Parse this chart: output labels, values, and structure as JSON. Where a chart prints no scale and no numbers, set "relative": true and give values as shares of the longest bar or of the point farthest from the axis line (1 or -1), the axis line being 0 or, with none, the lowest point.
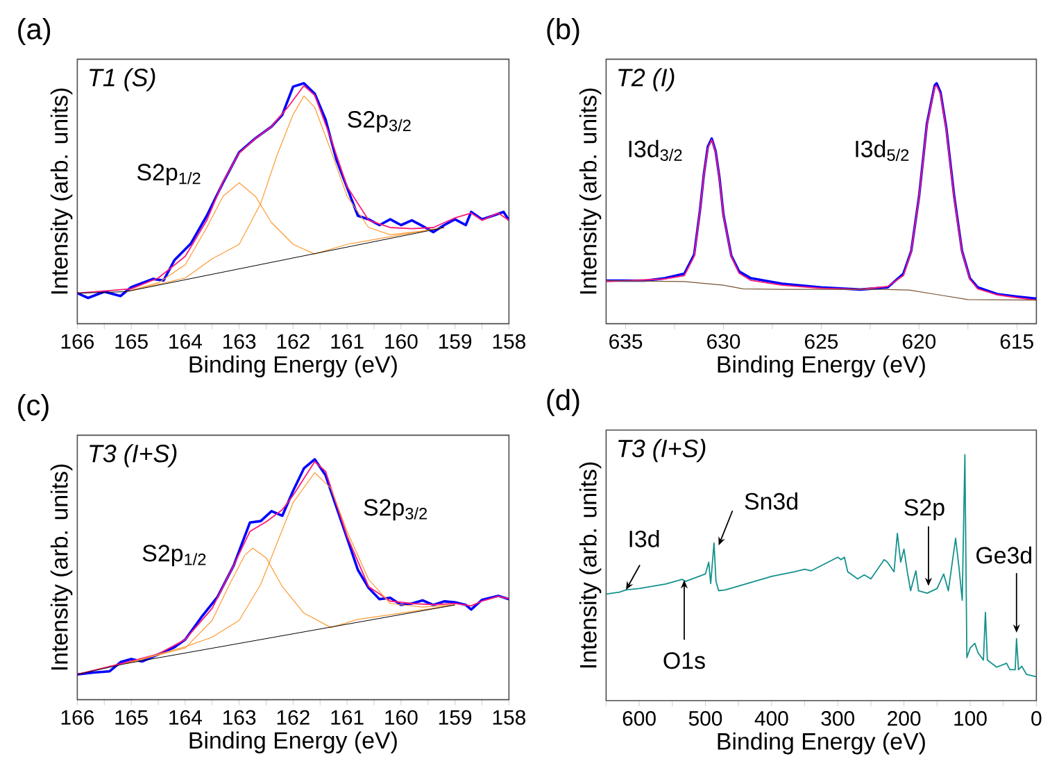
{
  "chart_data": [
    {
      "type": "line",
      "title": "(a)",
      "subtitle": "T1 (S)",
      "xlabel": "Binding Energy (eV)",
      "ylabel": "Intensity (arb. units)",
      "relative": true,
      "xlim": [
        166,
        158
      ],
      "xticks": [
        166,
        {
          "value": 165.5,
          "label": null
        },
        165,
        {
          "value": 164.5,
          "label": null
        },
        164,
        {
          "value": 163.5,
          "label": null
        },
        163,
        {
          "value": 162.5,
          "label": null
        },
        162,
        {
          "value": 161.5,
          "label": null
        },
        161,
        {
          "value": 160.5,
          "label": null
        },
        160,
        {
          "value": 159.5,
          "label": null
        },
        159,
        {
          "value": 158.5,
          "label": null
        },
        158
      ],
      "annotations": [
        "S2p$_{1/2}$",
        "S2p$_{3/2}$"
      ],
      "series": [
        {
          "color": "#0000ff",
          "x": [
            166,
            165.8,
            165.5,
            165.2,
            165.0,
            164.6,
            164.4,
            164.2,
            163.9,
            163.6,
            163.3,
            163.0,
            162.7,
            162.4,
            162.2,
            162.0,
            161.8,
            161.6,
            161.4,
            161.2,
            161.0,
            160.8,
            160.6,
            160.4,
            160.2,
            160.0,
            159.8,
            159.6,
            159.4,
            159.2,
            159.0,
            158.8,
            158.7,
            158.5,
            158.3,
            158.1,
            158.0
          ],
          "values": [
            0.127,
            0.107,
            0.133,
            0.115,
            0.152,
            0.186,
            0.18,
            0.264,
            0.332,
            0.449,
            0.586,
            0.713,
            0.771,
            0.82,
            0.869,
            0.986,
            1.0,
            0.957,
            0.85,
            0.684,
            0.566,
            0.449,
            0.434,
            0.41,
            0.434,
            0.41,
            0.43,
            0.406,
            0.381,
            0.41,
            0.434,
            0.41,
            0.465,
            0.434,
            0.449,
            0.465,
            0.43
          ]
        },
        {
          "color": "#ff1a75",
          "x": [
            166,
            165,
            164.5,
            164,
            163.6,
            163.3,
            163,
            162.7,
            162.4,
            162.1,
            161.8,
            161.6,
            161.3,
            161,
            160.6,
            160.2,
            159.8,
            159.4,
            159.2,
            159,
            158.7,
            158.5,
            158.2,
            158
          ],
          "values": [
            0.127,
            0.145,
            0.19,
            0.28,
            0.43,
            0.59,
            0.71,
            0.77,
            0.82,
            0.9,
            0.99,
            0.95,
            0.77,
            0.57,
            0.43,
            0.4,
            0.395,
            0.4,
            0.42,
            0.44,
            0.46,
            0.43,
            0.46,
            0.43
          ]
        },
        {
          "color": "#ff9933",
          "x": [
            165.1,
            164.5,
            164,
            163.6,
            163.3,
            163,
            162.7,
            162.4,
            162,
            161.6,
            161,
            160,
            159.2
          ],
          "values": [
            0.133,
            0.17,
            0.245,
            0.4,
            0.53,
            0.586,
            0.53,
            0.42,
            0.33,
            0.29,
            0.33,
            0.37,
            0.4
          ]
        },
        {
          "color": "#ff9933",
          "x": [
            165.1,
            164,
            163.5,
            163,
            162.6,
            162.3,
            162,
            161.8,
            161.6,
            161.3,
            161,
            160.6,
            160.2,
            159.6,
            159.2
          ],
          "values": [
            0.133,
            0.19,
            0.27,
            0.33,
            0.5,
            0.7,
            0.87,
            0.947,
            0.9,
            0.72,
            0.53,
            0.4,
            0.37,
            0.385,
            0.4
          ]
        },
        {
          "color": "#000000",
          "x": [
            166,
            165.1,
            159.2
          ],
          "values": [
            0.127,
            0.133,
            0.4
          ]
        }
      ]
    },
    {
      "type": "line",
      "title": "(b)",
      "subtitle": "T2 (I)",
      "xlabel": "Binding Energy (eV)",
      "ylabel": "Intensity (arb. units)",
      "relative": true,
      "xlim": [
        636,
        614
      ],
      "xticks": [
        635,
        {
          "value": 632.5,
          "label": null
        },
        630,
        {
          "value": 627.5,
          "label": null
        },
        625,
        {
          "value": 622.5,
          "label": null
        },
        620,
        {
          "value": 617.5,
          "label": null
        },
        615
      ],
      "annotations": [
        "I3d$_{3/2}$",
        "I3d$_{5/2}$"
      ],
      "series": [
        {
          "color": "#0000ff",
          "x": [
            636,
            634,
            633,
            632,
            631.5,
            631.2,
            631.0,
            630.8,
            630.6,
            630.4,
            630.2,
            630.0,
            629.6,
            629.2,
            628.6,
            627,
            625,
            623,
            621.6,
            620.8,
            620.4,
            620.0,
            619.6,
            619.2,
            619.1,
            618.9,
            618.6,
            618.2,
            617.8,
            617.4,
            617,
            616,
            615,
            614
          ],
          "values": [
            0.179,
            0.179,
            0.189,
            0.208,
            0.287,
            0.472,
            0.623,
            0.736,
            0.77,
            0.717,
            0.604,
            0.453,
            0.283,
            0.217,
            0.189,
            0.166,
            0.151,
            0.142,
            0.151,
            0.208,
            0.302,
            0.528,
            0.83,
            0.991,
            1.0,
            0.962,
            0.811,
            0.528,
            0.302,
            0.189,
            0.151,
            0.123,
            0.113,
            0.104
          ]
        },
        {
          "color": "#ff1a75",
          "x": [
            636,
            633,
            632,
            631.5,
            631.2,
            631,
            630.8,
            630.6,
            630.4,
            630.2,
            630,
            629.6,
            629.2,
            628.6,
            627,
            625,
            623,
            621.6,
            620.8,
            620.4,
            620,
            619.6,
            619.2,
            619.1,
            618.9,
            618.6,
            618.2,
            617.8,
            617.4,
            617,
            616,
            615,
            614
          ],
          "values": [
            0.175,
            0.186,
            0.2,
            0.28,
            0.47,
            0.62,
            0.73,
            0.765,
            0.715,
            0.6,
            0.45,
            0.28,
            0.21,
            0.18,
            0.16,
            0.147,
            0.143,
            0.155,
            0.2,
            0.3,
            0.525,
            0.825,
            0.985,
            0.99,
            0.955,
            0.805,
            0.52,
            0.3,
            0.185,
            0.145,
            0.12,
            0.108,
            0.098
          ]
        },
        {
          "color": "#7a5230",
          "x": [
            636,
            632,
            630,
            629,
            627,
            622,
            620.5,
            619,
            617.5,
            614
          ],
          "values": [
            0.179,
            0.175,
            0.16,
            0.145,
            0.143,
            0.143,
            0.14,
            0.12,
            0.1,
            0.098
          ]
        }
      ]
    },
    {
      "type": "line",
      "title": "(c)",
      "subtitle": "T3 (I+S)",
      "xlabel": "Binding Energy (eV)",
      "ylabel": "Intensity (arb. units)",
      "relative": true,
      "xlim": [
        166,
        158
      ],
      "xticks": [
        166,
        {
          "value": 165.5,
          "label": null
        },
        165,
        {
          "value": 164.5,
          "label": null
        },
        164,
        {
          "value": 163.5,
          "label": null
        },
        163,
        {
          "value": 162.5,
          "label": null
        },
        162,
        {
          "value": 161.5,
          "label": null
        },
        161,
        {
          "value": 160.5,
          "label": null
        },
        160,
        {
          "value": 159.5,
          "label": null
        },
        159,
        {
          "value": 158.5,
          "label": null
        },
        158
      ],
      "annotations": [
        "S2p$_{1/2}$",
        "S2p$_{3/2}$"
      ],
      "series": [
        {
          "color": "#0000ff",
          "x": [
            166,
            165.7,
            165.4,
            165.2,
            165.0,
            164.8,
            164.5,
            164.2,
            164.0,
            163.7,
            163.4,
            163.1,
            162.8,
            162.6,
            162.4,
            162.2,
            162.0,
            161.8,
            161.6,
            161.4,
            161.2,
            161.0,
            160.8,
            160.6,
            160.4,
            160.2,
            160.0,
            159.8,
            159.6,
            159.4,
            159.2,
            159.0,
            158.8,
            158.7,
            158.5,
            158.2,
            158.0
          ],
          "values": [
            0.105,
            0.113,
            0.118,
            0.156,
            0.169,
            0.159,
            0.188,
            0.218,
            0.25,
            0.343,
            0.428,
            0.559,
            0.737,
            0.743,
            0.784,
            0.765,
            0.869,
            0.962,
            1.0,
            0.934,
            0.803,
            0.672,
            0.54,
            0.465,
            0.418,
            0.424,
            0.394,
            0.4,
            0.413,
            0.394,
            0.409,
            0.405,
            0.394,
            0.375,
            0.415,
            0.432,
            0.418
          ]
        },
        {
          "color": "#ff1a75",
          "x": [
            166,
            165,
            164.5,
            164,
            163.5,
            163.1,
            162.8,
            162.5,
            162.2,
            162,
            161.6,
            161.4,
            161,
            160.6,
            160.2,
            159.8,
            159.4,
            159,
            158.7,
            158.5,
            158.2,
            158
          ],
          "values": [
            0.105,
            0.16,
            0.19,
            0.25,
            0.38,
            0.56,
            0.7,
            0.74,
            0.79,
            0.85,
            0.99,
            0.95,
            0.68,
            0.47,
            0.41,
            0.4,
            0.395,
            0.4,
            0.39,
            0.41,
            0.43,
            0.42
          ]
        },
        {
          "color": "#ff9933",
          "x": [
            165.1,
            164,
            163.5,
            163.2,
            162.9,
            162.75,
            162.5,
            162.2,
            161.8,
            161.3,
            160.8,
            160,
            159
          ],
          "values": [
            0.15,
            0.215,
            0.33,
            0.47,
            0.6,
            0.63,
            0.59,
            0.47,
            0.36,
            0.3,
            0.334,
            0.36,
            0.394
          ]
        },
        {
          "color": "#ff9933",
          "x": [
            165.1,
            164,
            163.5,
            163,
            162.6,
            162.3,
            162,
            161.6,
            161.3,
            161,
            160.6,
            160.2,
            159.6,
            159
          ],
          "values": [
            0.15,
            0.22,
            0.26,
            0.33,
            0.48,
            0.65,
            0.82,
            0.944,
            0.88,
            0.7,
            0.5,
            0.4,
            0.385,
            0.394
          ]
        },
        {
          "color": "#000000",
          "x": [
            166,
            165.1,
            159
          ],
          "values": [
            0.105,
            0.15,
            0.394
          ]
        }
      ]
    },
    {
      "type": "line",
      "title": "(d)",
      "subtitle": "T3 (I+S)",
      "xlabel": "Binding Energy (eV)",
      "ylabel": "Intensity (arb. units)",
      "relative": true,
      "xlim": [
        650,
        0
      ],
      "xticks": [
        {
          "value": 650,
          "label": null
        },
        600,
        {
          "value": 550,
          "label": null
        },
        500,
        {
          "value": 450,
          "label": null
        },
        400,
        {
          "value": 350,
          "label": null
        },
        300,
        {
          "value": 250,
          "label": null
        },
        200,
        {
          "value": 150,
          "label": null
        },
        100,
        {
          "value": 50,
          "label": null
        },
        0
      ],
      "annotations": [
        {
          "text": "I3d",
          "x": 620,
          "y": 0.45
        },
        {
          "text": "Sn3d",
          "x": 480,
          "y": 0.631
        },
        {
          "text": "O1s",
          "x": 532,
          "y": 0.49
        },
        {
          "text": "S2p",
          "x": 163,
          "y": 0.466
        },
        {
          "text": "Ge3d",
          "x": 30,
          "y": 0.276
        }
      ],
      "series": [
        {
          "color": "#13918c",
          "x": [
            650,
            630,
            620,
            600,
            560,
            535,
            530,
            510,
            500,
            495,
            492,
            487,
            484,
            480,
            470,
            450,
            400,
            365,
            350,
            340,
            300,
            295,
            290,
            285,
            270,
            260,
            250,
            230,
            225,
            215,
            210,
            205,
            200,
            195,
            190,
            182,
            178,
            165,
            150,
            140,
            133,
            127,
            122,
            117,
            112,
            108,
            105,
            100,
            93,
            88,
            80,
            77,
            74,
            60,
            45,
            40,
            32,
            30,
            27,
            22,
            15,
            0
          ],
          "values": [
            0.433,
            0.441,
            0.45,
            0.456,
            0.474,
            0.493,
            0.485,
            0.505,
            0.515,
            0.563,
            0.476,
            0.641,
            0.485,
            0.447,
            0.45,
            0.466,
            0.505,
            0.524,
            0.534,
            0.528,
            0.583,
            0.573,
            0.583,
            0.524,
            0.495,
            0.511,
            0.495,
            0.573,
            0.563,
            0.524,
            0.68,
            0.563,
            0.616,
            0.524,
            0.447,
            0.528,
            0.447,
            0.437,
            0.456,
            0.515,
            0.447,
            0.563,
            0.66,
            0.544,
            0.408,
            1.0,
            0.175,
            0.214,
            0.233,
            0.194,
            0.165,
            0.359,
            0.165,
            0.136,
            0.152,
            0.126,
            0.126,
            0.252,
            0.126,
            0.14,
            0.107,
            0.097
          ]
        }
      ]
    }
  ]
}
